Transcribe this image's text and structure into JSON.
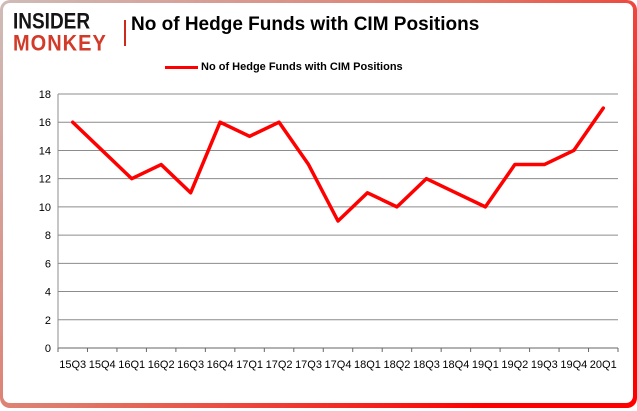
{
  "logo": {
    "line1": "INSIDER",
    "line2": "MONKEY",
    "accent_color": "#d23b29"
  },
  "header": {
    "title": "No of Hedge Funds with CIM Positions"
  },
  "legend": {
    "label": "No of Hedge Funds with CIM Positions",
    "swatch_color": "#FF0000"
  },
  "chart_data": {
    "type": "line",
    "title": "No of Hedge Funds with CIM Positions",
    "categories": [
      "15Q3",
      "15Q4",
      "16Q1",
      "16Q2",
      "16Q3",
      "16Q4",
      "17Q1",
      "17Q2",
      "17Q3",
      "17Q4",
      "18Q1",
      "18Q2",
      "18Q3",
      "18Q4",
      "19Q1",
      "19Q2",
      "19Q3",
      "19Q4",
      "20Q1"
    ],
    "series": [
      {
        "name": "No of Hedge Funds with CIM Positions",
        "color": "#FF0000",
        "values": [
          16,
          14,
          12,
          13,
          11,
          16,
          15,
          16,
          13,
          9,
          11,
          10,
          12,
          11,
          10,
          13,
          13,
          14,
          17
        ]
      }
    ],
    "xlabel": "",
    "ylabel": "",
    "ylim": [
      0,
      18
    ],
    "ytick_step": 2,
    "grid": true,
    "legend_position": "top",
    "gridline_color": "#8c8c8c",
    "axis_color": "#666666"
  }
}
